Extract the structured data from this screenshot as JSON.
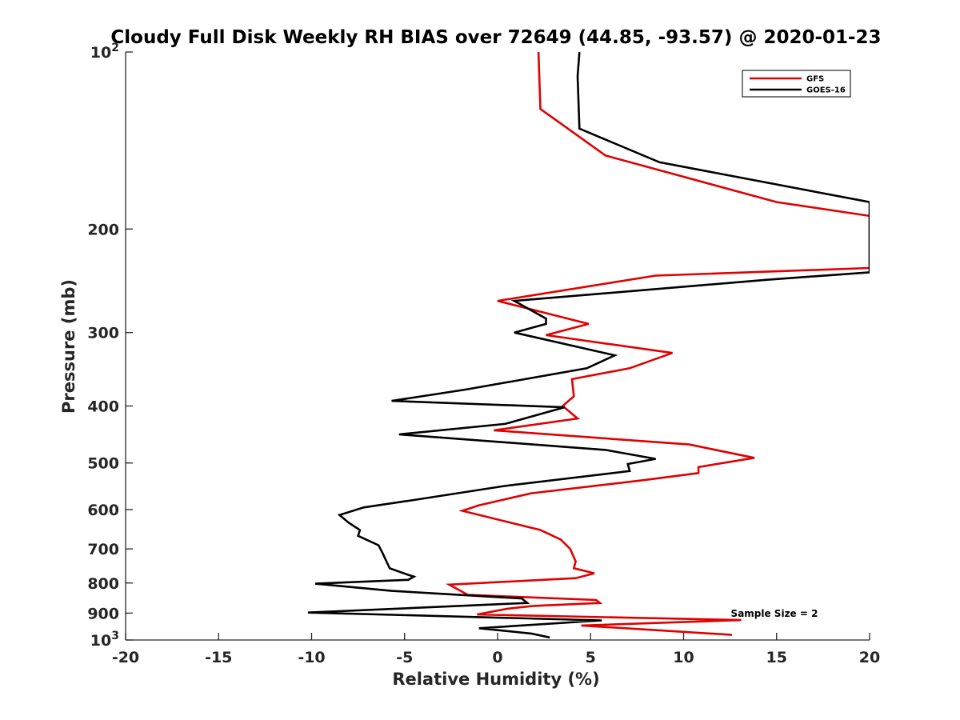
{
  "chart_data": {
    "type": "line",
    "title": "Cloudy Full Disk Weekly RH BIAS over 72649 (44.85, -93.57) @ 2020-01-23",
    "xlabel": "Relative Humidity (%)",
    "ylabel": "Pressure (mb)",
    "xlim": [
      -20,
      20
    ],
    "ylim": [
      100,
      1000
    ],
    "y_scale": "log",
    "y_reversed": true,
    "grid": false,
    "legend_position": "top-right",
    "annotation": "Sample Size = 2",
    "x_ticks": [
      -20,
      -15,
      -10,
      -5,
      0,
      5,
      10,
      15,
      20
    ],
    "x_tick_labels": [
      "-20",
      "-15",
      "-10",
      "-5",
      "0",
      "5",
      "10",
      "15",
      "20"
    ],
    "y_ticks": [
      {
        "value": 100,
        "label": "10",
        "sup": "2"
      },
      {
        "value": 200,
        "label": "200",
        "sup": ""
      },
      {
        "value": 300,
        "label": "300",
        "sup": ""
      },
      {
        "value": 400,
        "label": "400",
        "sup": ""
      },
      {
        "value": 500,
        "label": "500",
        "sup": ""
      },
      {
        "value": 600,
        "label": "600",
        "sup": ""
      },
      {
        "value": 700,
        "label": "700",
        "sup": ""
      },
      {
        "value": 800,
        "label": "800",
        "sup": ""
      },
      {
        "value": 900,
        "label": "900",
        "sup": ""
      },
      {
        "value": 1000,
        "label": "10",
        "sup": "3"
      }
    ],
    "series": [
      {
        "name": "GFS",
        "color": "#e00000",
        "points": [
          [
            2.2,
            100
          ],
          [
            2.3,
            125
          ],
          [
            5.8,
            150
          ],
          [
            15,
            180
          ],
          [
            20,
            190
          ],
          [
            20,
            233
          ],
          [
            8.5,
            240
          ],
          [
            0,
            265
          ],
          [
            4.9,
            290
          ],
          [
            2.6,
            303
          ],
          [
            9.4,
            325
          ],
          [
            7.1,
            345
          ],
          [
            4.0,
            360
          ],
          [
            4.1,
            385
          ],
          [
            3.5,
            400
          ],
          [
            4.3,
            420
          ],
          [
            -0.2,
            440
          ],
          [
            10.3,
            465
          ],
          [
            13.8,
            490
          ],
          [
            10.8,
            508
          ],
          [
            10.8,
            520
          ],
          [
            7.8,
            535
          ],
          [
            1.8,
            563
          ],
          [
            -1.0,
            590
          ],
          [
            -1.9,
            603
          ],
          [
            2.3,
            650
          ],
          [
            3.4,
            675
          ],
          [
            3.9,
            700
          ],
          [
            4.2,
            735
          ],
          [
            4.1,
            755
          ],
          [
            5.2,
            770
          ],
          [
            4.2,
            785
          ],
          [
            -2.6,
            805
          ],
          [
            -1.6,
            838
          ],
          [
            5.3,
            855
          ],
          [
            5.5,
            865
          ],
          [
            1.9,
            875
          ],
          [
            0.5,
            885
          ],
          [
            -1.1,
            905
          ],
          [
            13.1,
            925
          ],
          [
            4.5,
            945
          ],
          [
            12.6,
            980
          ]
        ]
      },
      {
        "name": "GOES-16",
        "color": "#000000",
        "points": [
          [
            4.4,
            100
          ],
          [
            4.3,
            110
          ],
          [
            4.4,
            135
          ],
          [
            8.7,
            154
          ],
          [
            20,
            180
          ],
          [
            20,
            237
          ],
          [
            14.5,
            244
          ],
          [
            0.9,
            265
          ],
          [
            2.6,
            284
          ],
          [
            2.6,
            290
          ],
          [
            0.9,
            300
          ],
          [
            6.3,
            328
          ],
          [
            4.8,
            345
          ],
          [
            -1.7,
            375
          ],
          [
            -5.7,
            392
          ],
          [
            3.6,
            402
          ],
          [
            0.4,
            429
          ],
          [
            -5.3,
            447
          ],
          [
            5.8,
            475
          ],
          [
            8.5,
            492
          ],
          [
            7.0,
            502
          ],
          [
            7.1,
            516
          ],
          [
            0.4,
            547
          ],
          [
            -4.5,
            578
          ],
          [
            -7.2,
            595
          ],
          [
            -8.5,
            613
          ],
          [
            -8.0,
            632
          ],
          [
            -7.4,
            650
          ],
          [
            -7.5,
            665
          ],
          [
            -6.4,
            690
          ],
          [
            -6.2,
            710
          ],
          [
            -5.8,
            755
          ],
          [
            -4.8,
            775
          ],
          [
            -4.5,
            780
          ],
          [
            -4.8,
            790
          ],
          [
            -9.8,
            802
          ],
          [
            -5.7,
            825
          ],
          [
            1.3,
            850
          ],
          [
            1.6,
            865
          ],
          [
            -10.2,
            898
          ],
          [
            5.6,
            926
          ],
          [
            -1.0,
            955
          ],
          [
            1.8,
            975
          ],
          [
            2.8,
            990
          ]
        ]
      }
    ]
  }
}
